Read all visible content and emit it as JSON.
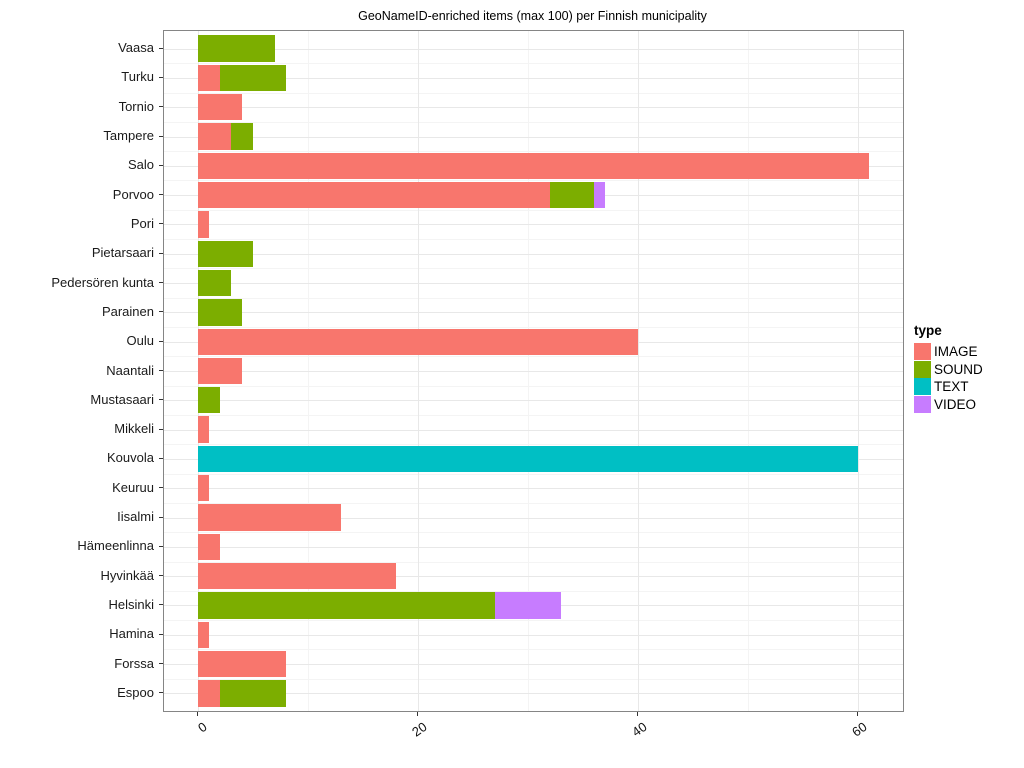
{
  "legend": {
    "title": "type",
    "entries": [
      "IMAGE",
      "SOUND",
      "TEXT",
      "VIDEO"
    ]
  },
  "colors": {
    "IMAGE": "#F8766D",
    "SOUND": "#7CAE00",
    "TEXT": "#00BFC4",
    "VIDEO": "#C77CFF"
  },
  "chart_data": {
    "type": "bar",
    "orientation": "horizontal",
    "stacked": true,
    "title": "GeoNameID-enriched items (max 100) per Finnish municipality",
    "categories": [
      "Vaasa",
      "Turku",
      "Tornio",
      "Tampere",
      "Salo",
      "Porvoo",
      "Pori",
      "Pietarsaari",
      "Pedersören kunta",
      "Parainen",
      "Oulu",
      "Naantali",
      "Mustasaari",
      "Mikkeli",
      "Kouvola",
      "Keuruu",
      "Iisalmi",
      "Hämeenlinna",
      "Hyvinkää",
      "Helsinki",
      "Hamina",
      "Forssa",
      "Espoo"
    ],
    "series": [
      {
        "name": "IMAGE",
        "color": "#F8766D",
        "values": [
          0,
          2,
          4,
          3,
          61,
          32,
          1,
          0,
          0,
          0,
          40,
          4,
          0,
          1,
          0,
          1,
          13,
          2,
          18,
          0,
          1,
          8,
          2
        ]
      },
      {
        "name": "SOUND",
        "color": "#7CAE00",
        "values": [
          7,
          6,
          0,
          2,
          0,
          4,
          0,
          5,
          3,
          4,
          0,
          0,
          2,
          0,
          0,
          0,
          0,
          0,
          0,
          27,
          0,
          0,
          6
        ]
      },
      {
        "name": "TEXT",
        "color": "#00BFC4",
        "values": [
          0,
          0,
          0,
          0,
          0,
          0,
          0,
          0,
          0,
          0,
          0,
          0,
          0,
          0,
          60,
          0,
          0,
          0,
          0,
          0,
          0,
          0,
          0
        ]
      },
      {
        "name": "VIDEO",
        "color": "#C77CFF",
        "values": [
          0,
          0,
          0,
          0,
          0,
          1,
          0,
          0,
          0,
          0,
          0,
          0,
          0,
          0,
          0,
          0,
          0,
          0,
          0,
          6,
          0,
          0,
          0
        ]
      }
    ],
    "x_ticks": [
      0,
      20,
      40,
      60
    ],
    "x_minor_ticks": [
      10,
      30,
      50
    ],
    "xlim": [
      0,
      61
    ],
    "xlabel": "",
    "ylabel": "",
    "grid": true,
    "legend_position": "right"
  }
}
